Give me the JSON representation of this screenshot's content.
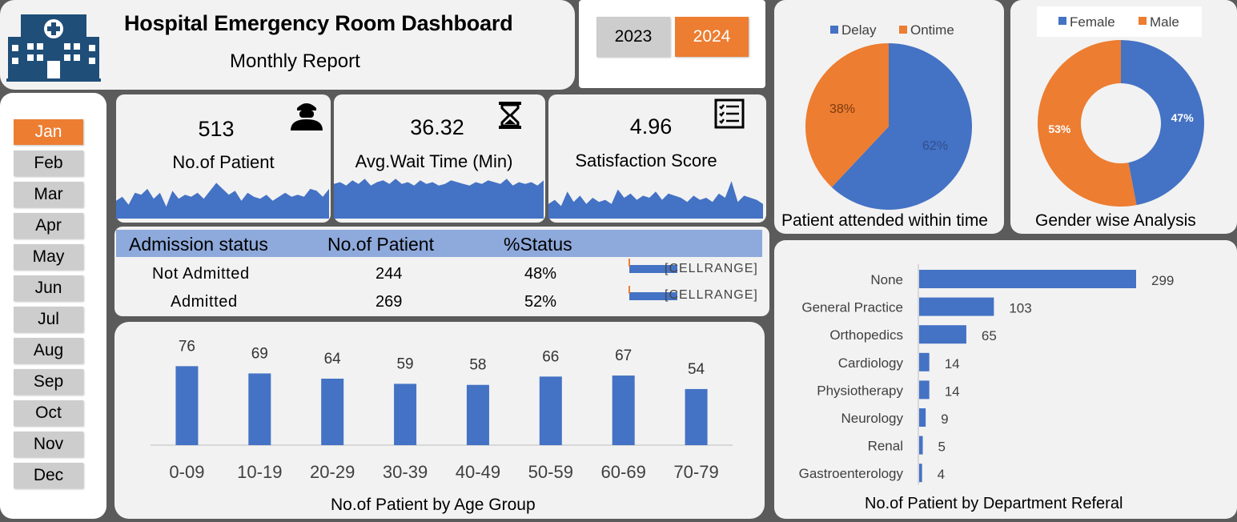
{
  "header": {
    "title": "Hospital Emergency Room Dashboard",
    "subtitle": "Monthly Report",
    "logo_icon": "hospital-icon"
  },
  "years": [
    {
      "label": "2023",
      "active": false
    },
    {
      "label": "2024",
      "active": true
    }
  ],
  "months": [
    {
      "label": "Jan",
      "active": true
    },
    {
      "label": "Feb",
      "active": false
    },
    {
      "label": "Mar",
      "active": false
    },
    {
      "label": "Apr",
      "active": false
    },
    {
      "label": "May",
      "active": false
    },
    {
      "label": "Jun",
      "active": false
    },
    {
      "label": "Jul",
      "active": false
    },
    {
      "label": "Aug",
      "active": false
    },
    {
      "label": "Sep",
      "active": false
    },
    {
      "label": "Oct",
      "active": false
    },
    {
      "label": "Nov",
      "active": false
    },
    {
      "label": "Dec",
      "active": false
    }
  ],
  "kpis": [
    {
      "value": "513",
      "label": "No.of Patient",
      "icon": "patient-icon"
    },
    {
      "value": "36.32",
      "label": "Avg.Wait Time (Min)",
      "icon": "hourglass-icon"
    },
    {
      "value": "4.96",
      "label": "Satisfaction Score",
      "icon": "checklist-icon"
    }
  ],
  "admission": {
    "headers": [
      "Admission status",
      "No.of Patient",
      "%Status"
    ],
    "rows": [
      {
        "status": "Not Admitted",
        "count": "244",
        "pct": "48%",
        "bar_label": "[CELLRANGE]"
      },
      {
        "status": "Admitted",
        "count": "269",
        "pct": "52%",
        "bar_label": "[CELLRANGE]"
      }
    ]
  },
  "colors": {
    "blue": "#4472c4",
    "orange": "#ed7d31",
    "header_blue": "#8ea9db",
    "gray_btn": "#cdcdcd"
  },
  "chart_data": [
    {
      "id": "sparkline-patients",
      "type": "area",
      "values": [
        18,
        22,
        14,
        26,
        24,
        30,
        20,
        26,
        12,
        28,
        20,
        24,
        22,
        26,
        20,
        28,
        36,
        30,
        24,
        28,
        18,
        26,
        22,
        20,
        24,
        18,
        22,
        26,
        22,
        24,
        22,
        30,
        28,
        22,
        30
      ]
    },
    {
      "id": "sparkline-wait",
      "type": "area",
      "values": [
        40,
        42,
        38,
        44,
        40,
        46,
        38,
        42,
        44,
        40,
        46,
        40,
        42,
        38,
        44,
        40,
        42,
        38,
        40,
        44,
        42,
        40,
        38,
        42,
        40,
        44,
        42,
        40,
        46,
        38,
        42,
        40,
        42,
        38,
        44
      ]
    },
    {
      "id": "sparkline-satisfaction",
      "type": "area",
      "values": [
        14,
        18,
        12,
        26,
        16,
        22,
        14,
        20,
        16,
        18,
        14,
        28,
        20,
        24,
        18,
        22,
        20,
        26,
        18,
        24,
        22,
        20,
        16,
        22,
        18,
        20,
        16,
        24,
        20,
        36,
        16,
        22,
        20,
        18,
        14
      ]
    },
    {
      "id": "attended-within-time",
      "type": "pie",
      "title": "Patient attended within time",
      "legend": "top",
      "slices": [
        {
          "name": "Delay",
          "value": 62,
          "label": "62%"
        },
        {
          "name": "Ontime",
          "value": 38,
          "label": "38%"
        }
      ]
    },
    {
      "id": "gender-analysis",
      "type": "pie",
      "donut": true,
      "title": "Gender wise Analysis",
      "legend": "top",
      "slices": [
        {
          "name": "Female",
          "value": 47,
          "label": "47%"
        },
        {
          "name": "Male",
          "value": 53,
          "label": "53%"
        }
      ]
    },
    {
      "id": "age-group",
      "type": "bar",
      "title": "No.of Patient by Age Group",
      "categories": [
        "0-09",
        "10-19",
        "20-29",
        "30-39",
        "40-49",
        "50-59",
        "60-69",
        "70-79"
      ],
      "values": [
        76,
        69,
        64,
        59,
        58,
        66,
        67,
        54
      ]
    },
    {
      "id": "department-referal",
      "type": "bar",
      "orientation": "horizontal",
      "title": "No.of Patient by Department Referal",
      "categories": [
        "None",
        "General Practice",
        "Orthopedics",
        "Cardiology",
        "Physiotherapy",
        "Neurology",
        "Renal",
        "Gastroenterology"
      ],
      "values": [
        299,
        103,
        65,
        14,
        14,
        9,
        5,
        4
      ]
    }
  ]
}
